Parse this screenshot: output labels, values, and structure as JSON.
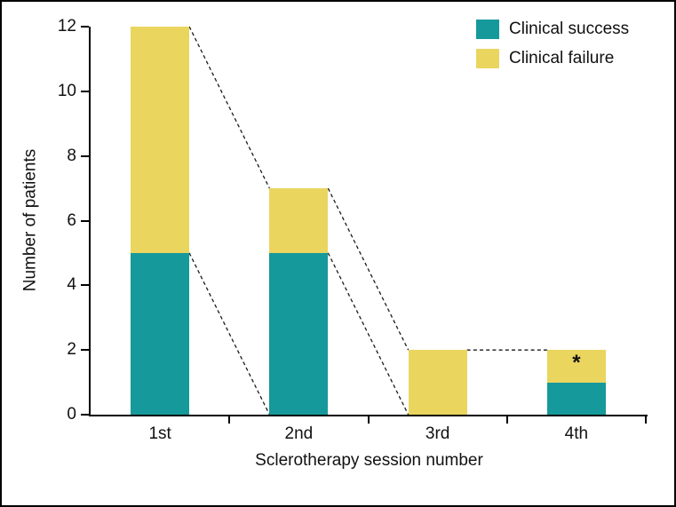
{
  "figure": {
    "background": "#ffffff",
    "border_color": "#000000",
    "text_color": "#111111"
  },
  "chart_data": {
    "type": "bar",
    "stacked": true,
    "categories": [
      "1st",
      "2nd",
      "3rd",
      "4th"
    ],
    "series": [
      {
        "name": "Clinical success",
        "color": "#16999B",
        "values": [
          5,
          5,
          0,
          1
        ]
      },
      {
        "name": "Clinical failure",
        "color": "#EAD55F",
        "values": [
          7,
          2,
          2,
          1
        ]
      }
    ],
    "totals": [
      12,
      7,
      2,
      2
    ],
    "xlabel": "Sclerotherapy session number",
    "ylabel": "Number of patients",
    "ylim": [
      0,
      12
    ],
    "yticks": [
      0,
      2,
      4,
      6,
      8,
      10,
      12
    ],
    "grid": false,
    "legend_position": "top-right",
    "annotations": [
      {
        "category_index": 3,
        "series": "Clinical failure",
        "text": "*"
      }
    ],
    "dashed_connectors": [
      {
        "from_category": 0,
        "from_value": 12,
        "to_category": 1,
        "to_value": 7
      },
      {
        "from_category": 0,
        "from_value": 5,
        "to_category": 1,
        "to_value": 0
      },
      {
        "from_category": 1,
        "from_value": 7,
        "to_category": 2,
        "to_value": 2
      },
      {
        "from_category": 1,
        "from_value": 5,
        "to_category": 2,
        "to_value": 0
      },
      {
        "from_category": 2,
        "from_value": 2,
        "to_category": 3,
        "to_value": 2
      }
    ],
    "connector_style": {
      "color": "#1a1a1a",
      "dash": "4 3.2",
      "width": 1.3
    }
  }
}
